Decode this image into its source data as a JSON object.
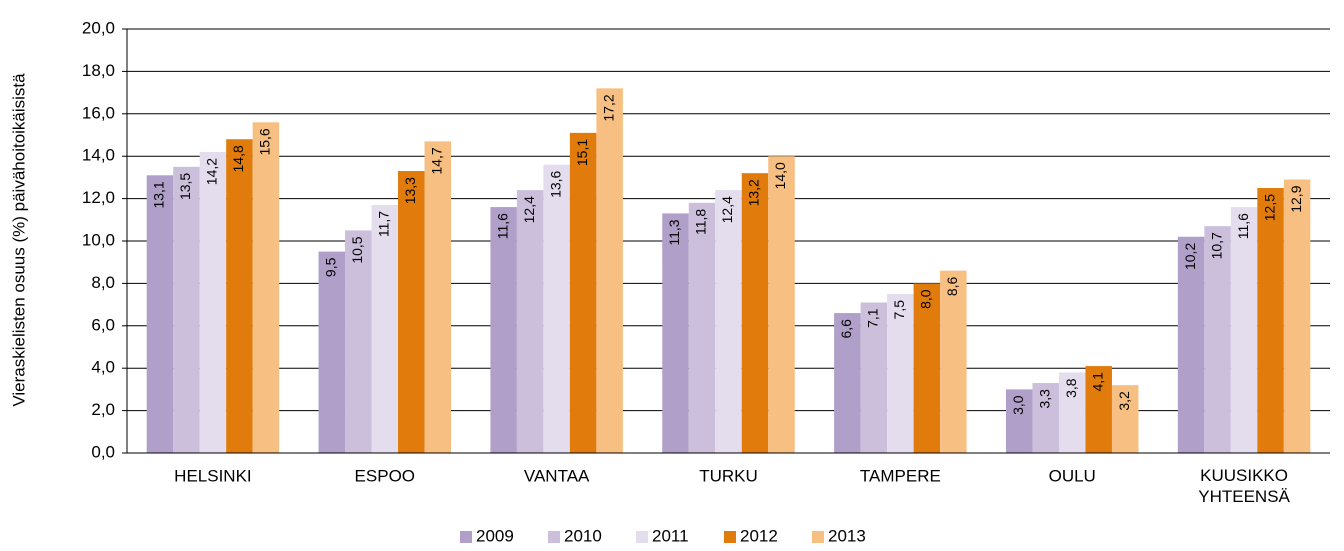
{
  "chart_data": {
    "type": "bar",
    "ylabel": "Vieraskielisten osuus (%) päivähoitoikäisistä",
    "categories": [
      "HELSINKI",
      "ESPOO",
      "VANTAA",
      "TURKU",
      "TAMPERE",
      "OULU",
      "KUUSIKKO YHTEENSÄ"
    ],
    "series": [
      {
        "name": "2009",
        "color": "#b09fc8",
        "values": [
          13.1,
          9.5,
          11.6,
          11.3,
          6.6,
          3.0,
          10.2
        ],
        "value_labels": [
          "13,1",
          "9,5",
          "11,6",
          "11,3",
          "6,6",
          "3,0",
          "10,2"
        ]
      },
      {
        "name": "2010",
        "color": "#cbbfdc",
        "values": [
          13.5,
          10.5,
          12.4,
          11.8,
          7.1,
          3.3,
          10.7
        ],
        "value_labels": [
          "13,5",
          "10,5",
          "12,4",
          "11,8",
          "7,1",
          "3,3",
          "10,7"
        ]
      },
      {
        "name": "2011",
        "color": "#e3ddee",
        "values": [
          14.2,
          11.7,
          13.6,
          12.4,
          7.5,
          3.8,
          11.6
        ],
        "value_labels": [
          "14,2",
          "11,7",
          "13,6",
          "12,4",
          "7,5",
          "3,8",
          "11,6"
        ]
      },
      {
        "name": "2012",
        "color": "#e07b0c",
        "values": [
          14.8,
          13.3,
          15.1,
          13.2,
          8.0,
          4.1,
          12.5
        ],
        "value_labels": [
          "14,8",
          "13,3",
          "15,1",
          "13,2",
          "8,0",
          "4,1",
          "12,5"
        ]
      },
      {
        "name": "2013",
        "color": "#f7bf82",
        "values": [
          15.6,
          14.7,
          17.2,
          14.0,
          8.6,
          3.2,
          12.9
        ],
        "value_labels": [
          "15,6",
          "14,7",
          "17,2",
          "14,0",
          "8,6",
          "3,2",
          "12,9"
        ]
      }
    ],
    "ylim": [
      0,
      20
    ],
    "yticks": [
      {
        "value": 0,
        "label": "0,0"
      },
      {
        "value": 2,
        "label": "2,0"
      },
      {
        "value": 4,
        "label": "4,0"
      },
      {
        "value": 6,
        "label": "6,0"
      },
      {
        "value": 8,
        "label": "8,0"
      },
      {
        "value": 10,
        "label": "10,0"
      },
      {
        "value": 12,
        "label": "12,0"
      },
      {
        "value": 14,
        "label": "14,0"
      },
      {
        "value": 16,
        "label": "16,0"
      },
      {
        "value": 18,
        "label": "18,0"
      },
      {
        "value": 20,
        "label": "20,0"
      }
    ],
    "grid": true,
    "legend": "bottom"
  }
}
